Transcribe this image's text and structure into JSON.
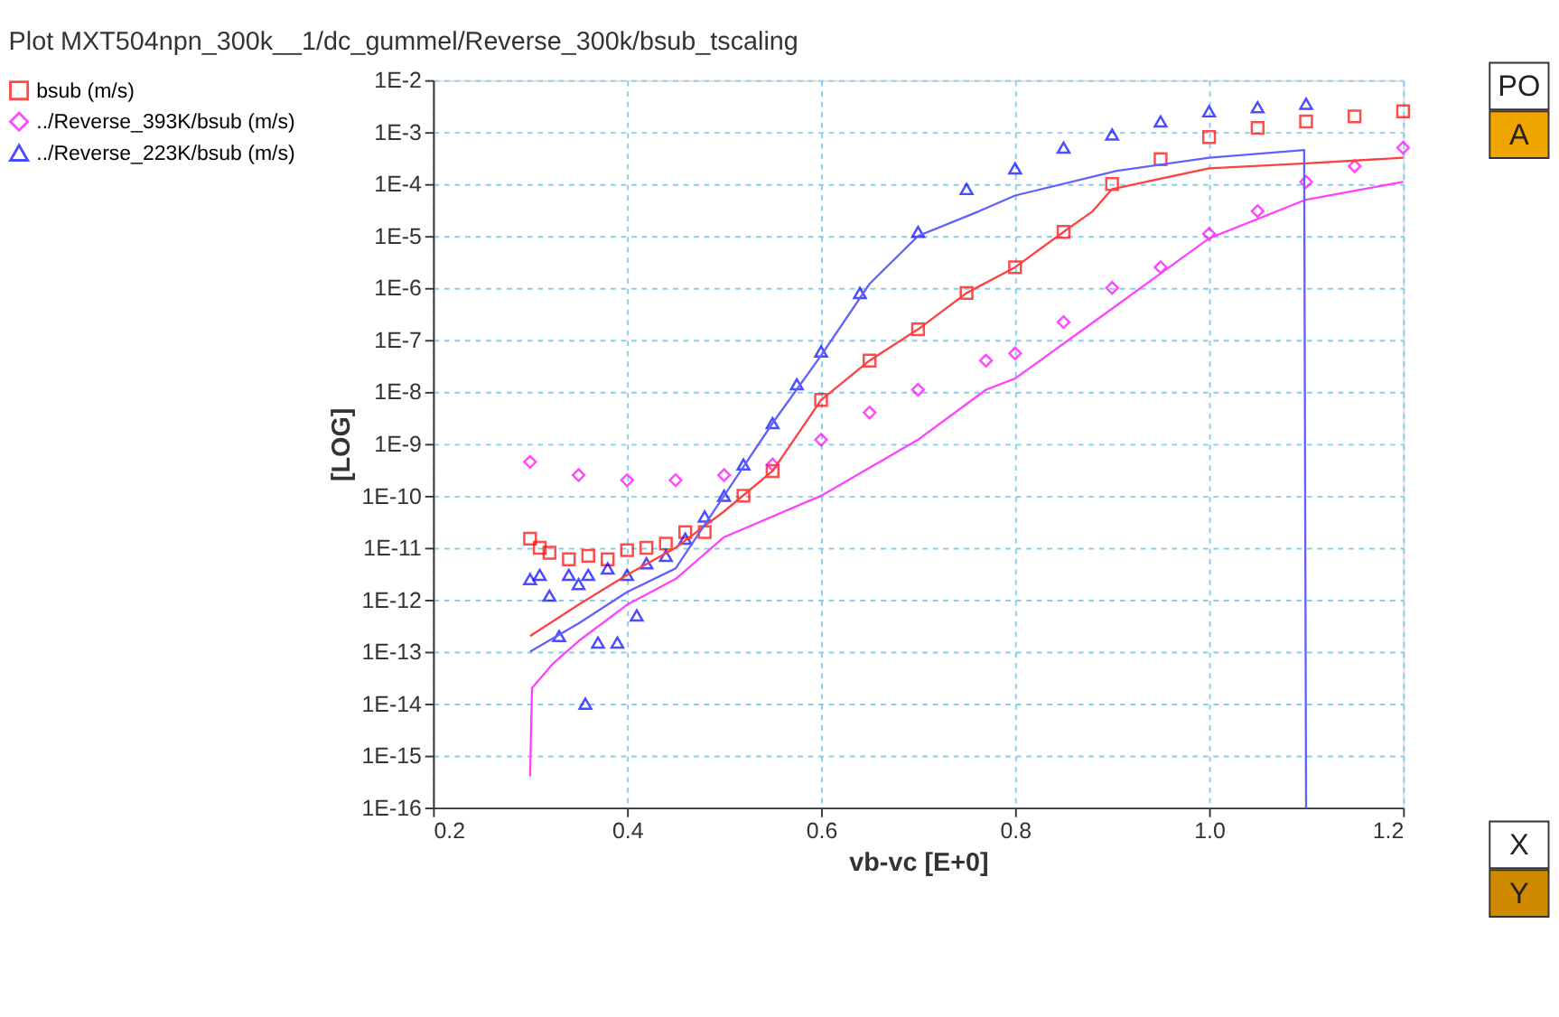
{
  "chart_data": {
    "type": "scatter",
    "title": "Plot MXT504npn_300k__1/dc_gummel/Reverse_300k/bsub_tscaling",
    "xlabel": "vb-vc  [E+0]",
    "ylabel": "[LOG]",
    "log": "y",
    "grid": true,
    "legend": "left",
    "xlim": [
      0.2,
      1.2
    ],
    "xticks": [
      0.2,
      0.4,
      0.6,
      0.8,
      {
        "value": 1.0,
        "label": "1.0"
      },
      1.2
    ],
    "ylim": [
      1e-16,
      0.01
    ],
    "yticks": [
      {
        "value": 1e-16,
        "label": "1E-16"
      },
      {
        "value": 1e-15,
        "label": "1E-15"
      },
      {
        "value": 1e-14,
        "label": "1E-14"
      },
      {
        "value": 1e-13,
        "label": "1E-13"
      },
      {
        "value": 1e-12,
        "label": "1E-12"
      },
      {
        "value": 1e-11,
        "label": "1E-11"
      },
      {
        "value": 1e-10,
        "label": "1E-10"
      },
      {
        "value": 1e-09,
        "label": "1E-9"
      },
      {
        "value": 1e-08,
        "label": "1E-8"
      },
      {
        "value": 1e-07,
        "label": "1E-7"
      },
      {
        "value": 1e-06,
        "label": "1E-6"
      },
      {
        "value": 1e-05,
        "label": "1E-5"
      },
      {
        "value": 0.0001,
        "label": "1E-4"
      },
      {
        "value": 0.001,
        "label": "1E-3"
      },
      {
        "value": 0.01,
        "label": "1E-2"
      }
    ],
    "annotations": [
      "PO",
      "A",
      "X",
      "Y"
    ],
    "series": [
      {
        "name": "bsub (m/s)",
        "type": "scatter",
        "marker": "square",
        "color": "#ff0000",
        "x": [
          0.3,
          0.31,
          0.32,
          0.34,
          0.36,
          0.38,
          0.4,
          0.42,
          0.44,
          0.46,
          0.48,
          0.52,
          0.55,
          0.6,
          0.65,
          0.7,
          0.75,
          0.8,
          0.85,
          0.9,
          0.95,
          1.0,
          1.05,
          1.1,
          1.15,
          1.2
        ],
        "values": [
          1.5e-11,
          1e-11,
          8e-12,
          6e-12,
          7e-12,
          6e-12,
          9e-12,
          1e-11,
          1.2e-11,
          2e-11,
          2e-11,
          1e-10,
          3e-10,
          7e-09,
          4e-08,
          1.6e-07,
          8e-07,
          2.5e-06,
          1.2e-05,
          0.0001,
          0.0003,
          0.0008,
          0.0012,
          0.0016,
          0.002,
          0.0025
        ]
      },
      {
        "name": "../Reverse_393K/bsub (m/s)",
        "type": "scatter",
        "marker": "diamond",
        "color": "#ff00ff",
        "x": [
          0.3,
          0.35,
          0.4,
          0.45,
          0.5,
          0.55,
          0.6,
          0.65,
          0.7,
          0.77,
          0.8,
          0.85,
          0.9,
          0.95,
          1.0,
          1.05,
          1.1,
          1.15,
          1.2
        ],
        "values": [
          4.5e-10,
          2.5e-10,
          2e-10,
          2e-10,
          2.5e-10,
          4e-10,
          1.2e-09,
          4e-09,
          1.1e-08,
          4e-08,
          5.5e-08,
          2.2e-07,
          1e-06,
          2.5e-06,
          1.1e-05,
          3e-05,
          0.00011,
          0.00022,
          0.0005
        ]
      },
      {
        "name": "../Reverse_223K/bsub (m/s)",
        "type": "scatter",
        "marker": "triangle",
        "color": "#0000ff",
        "x": [
          0.3,
          0.31,
          0.32,
          0.33,
          0.34,
          0.35,
          0.357,
          0.36,
          0.37,
          0.38,
          0.39,
          0.4,
          0.41,
          0.42,
          0.44,
          0.46,
          0.48,
          0.5,
          0.52,
          0.55,
          0.575,
          0.6,
          0.64,
          0.7,
          0.75,
          0.8,
          0.85,
          0.9,
          0.95,
          1.0,
          1.05,
          1.1
        ],
        "values": [
          2.5e-12,
          3e-12,
          1.2e-12,
          2e-13,
          3e-12,
          2e-12,
          1e-14,
          3e-12,
          1.5e-13,
          4e-12,
          1.5e-13,
          3e-12,
          5e-13,
          5e-12,
          7e-12,
          1.5e-11,
          4e-11,
          1e-10,
          4e-10,
          2.5e-09,
          1.4e-08,
          6e-08,
          8e-07,
          1.2e-05,
          8e-05,
          0.0002,
          0.0005,
          0.0009,
          0.0016,
          0.0025,
          0.003,
          0.0035
        ]
      },
      {
        "type": "line",
        "marker": "none",
        "line_style": "solid",
        "color": "#ff4040",
        "x": [
          0.3,
          0.35,
          0.4,
          0.45,
          0.5,
          0.55,
          0.6,
          0.65,
          0.7,
          0.75,
          0.8,
          0.85,
          0.88,
          0.9,
          1.0,
          1.1,
          1.2
        ],
        "values": [
          2e-13,
          8e-13,
          3e-12,
          1e-11,
          5e-11,
          3e-10,
          7e-09,
          4e-08,
          1.6e-07,
          8e-07,
          2.5e-06,
          1.2e-05,
          3e-05,
          8e-05,
          0.0002,
          0.00025,
          0.00032
        ]
      },
      {
        "type": "line",
        "marker": "none",
        "line_style": "solid",
        "color": "#ff40ff",
        "x": [
          0.3,
          0.302,
          0.324,
          0.35,
          0.4,
          0.45,
          0.5,
          0.6,
          0.7,
          0.77,
          0.8,
          0.9,
          1.0,
          1.1,
          1.2
        ],
        "values": [
          4e-16,
          2e-14,
          6e-14,
          1.6e-13,
          8e-13,
          2.5e-12,
          1.6e-11,
          1e-10,
          1.2e-09,
          1.1e-08,
          1.8e-08,
          4e-07,
          9e-06,
          5e-05,
          0.00011
        ]
      },
      {
        "type": "line",
        "marker": "none",
        "line_style": "solid",
        "color": "#6060ff",
        "x": [
          0.3,
          0.35,
          0.4,
          0.45,
          0.5,
          0.55,
          0.6,
          0.65,
          0.7,
          0.763,
          0.8,
          0.905,
          1.0,
          1.098,
          1.1
        ],
        "values": [
          1e-13,
          3.5e-13,
          1.4e-12,
          4e-12,
          1e-10,
          2.5e-09,
          5e-08,
          1.2e-06,
          1e-05,
          3e-05,
          6e-05,
          0.00018,
          0.00032,
          0.00045,
          1e-16
        ]
      }
    ]
  }
}
